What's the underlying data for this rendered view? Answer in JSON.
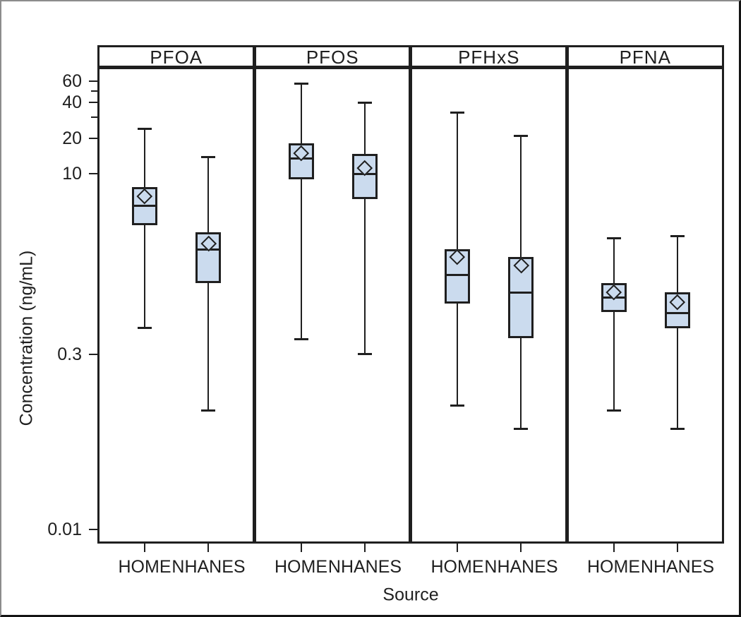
{
  "colors": {
    "box_fill": "#cbdbee",
    "line": "#1f1f1f",
    "text": "#1f1f1f",
    "frame_gray": "#8c8c8c"
  },
  "chart_data": {
    "type": "boxplot",
    "title": "",
    "xlabel": "Source",
    "ylabel": "Concentration (ng/mL)",
    "y_scale": "log",
    "ylim": [
      0.008,
      75
    ],
    "grid": false,
    "y_ticks": [
      {
        "value": 60,
        "label": "60"
      },
      {
        "value": 50,
        "label": ""
      },
      {
        "value": 40,
        "label": "40"
      },
      {
        "value": 30,
        "label": ""
      },
      {
        "value": 20,
        "label": "20"
      },
      {
        "value": 10,
        "label": "10"
      },
      {
        "value": 0.3,
        "label": "0.3"
      },
      {
        "value": 0.01,
        "label": "0.01"
      }
    ],
    "panels": [
      {
        "label": "PFOA",
        "groups": [
          {
            "label": "HOME",
            "whisker_low": 0.5,
            "q1": 3.7,
            "median": 5.4,
            "mean": 6.5,
            "q3": 7.7,
            "whisker_high": 24
          },
          {
            "label": "NHANES",
            "whisker_low": 0.1,
            "q1": 1.2,
            "median": 2.3,
            "mean": 2.6,
            "q3": 3.2,
            "whisker_high": 14
          }
        ]
      },
      {
        "label": "PFOS",
        "groups": [
          {
            "label": "HOME",
            "whisker_low": 0.4,
            "q1": 9.0,
            "median": 13.4,
            "mean": 15.0,
            "q3": 18.0,
            "whisker_high": 58
          },
          {
            "label": "NHANES",
            "whisker_low": 0.3,
            "q1": 6.1,
            "median": 10.0,
            "mean": 11.2,
            "q3": 14.8,
            "whisker_high": 40
          }
        ]
      },
      {
        "label": "PFHxS",
        "groups": [
          {
            "label": "HOME",
            "whisker_low": 0.11,
            "q1": 0.8,
            "median": 1.4,
            "mean": 2.0,
            "q3": 2.3,
            "whisker_high": 33
          },
          {
            "label": "NHANES",
            "whisker_low": 0.07,
            "q1": 0.41,
            "median": 1.0,
            "mean": 1.7,
            "q3": 2.0,
            "whisker_high": 21
          }
        ]
      },
      {
        "label": "PFNA",
        "groups": [
          {
            "label": "HOME",
            "whisker_low": 0.1,
            "q1": 0.68,
            "median": 0.91,
            "mean": 1.0,
            "q3": 1.2,
            "whisker_high": 2.9
          },
          {
            "label": "NHANES",
            "whisker_low": 0.07,
            "q1": 0.5,
            "median": 0.67,
            "mean": 0.83,
            "q3": 1.0,
            "whisker_high": 3.0
          }
        ]
      }
    ]
  }
}
